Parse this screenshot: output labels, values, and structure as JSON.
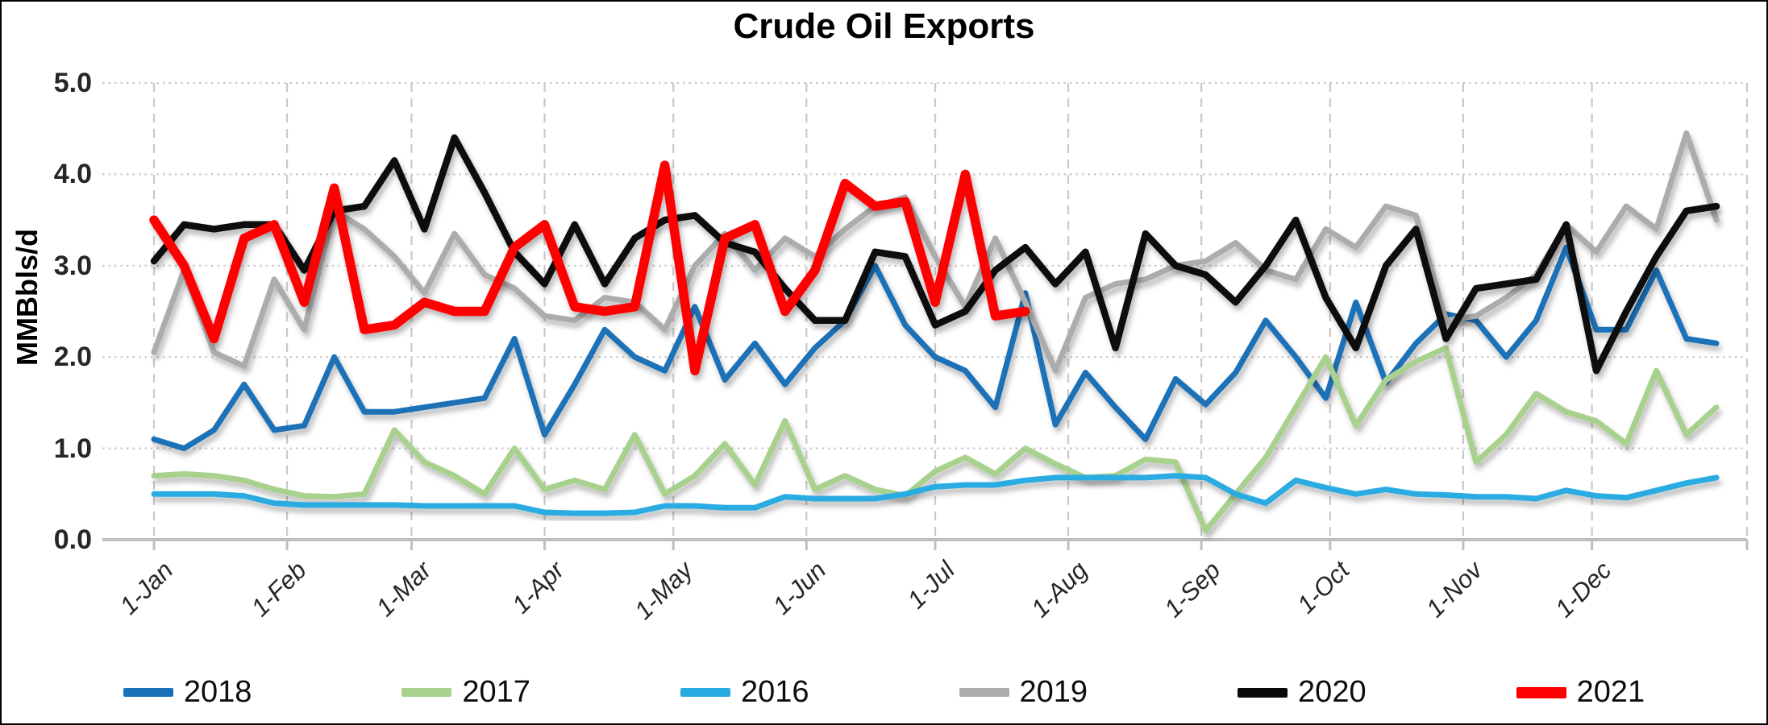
{
  "title": "Crude Oil Exports",
  "y_axis": {
    "label": "MMBbls/d",
    "tick_labels": [
      "0.0",
      "1.0",
      "2.0",
      "3.0",
      "4.0",
      "5.0"
    ],
    "min": 0,
    "max": 5
  },
  "x_axis": {
    "tick_labels": [
      "1-Jan",
      "1-Feb",
      "1-Mar",
      "1-Apr",
      "1-May",
      "1-Jun",
      "1-Jul",
      "1-Aug",
      "1-Sep",
      "1-Oct",
      "1-Nov",
      "1-Dec"
    ]
  },
  "legend": {
    "entries": [
      {
        "label": "2018",
        "color": "#1B71B7"
      },
      {
        "label": "2017",
        "color": "#A9D18E"
      },
      {
        "label": "2016",
        "color": "#29ABE2"
      },
      {
        "label": "2019",
        "color": "#ACACAC"
      },
      {
        "label": "2020",
        "color": "#0A0A0A"
      },
      {
        "label": "2021",
        "color": "#FE0000"
      }
    ]
  },
  "chart_data": {
    "type": "line",
    "title": "Crude Oil Exports",
    "ylabel": "MMBbls/d",
    "ylim": [
      0,
      5
    ],
    "grid": {
      "horizontal": "dotted",
      "vertical": "dashed"
    },
    "legend_position": "bottom",
    "x_unit": "weekly (values are approximate weekly readings, weeks 1-53 of the year)",
    "months": [
      {
        "label": "1-Jan",
        "doy": 1
      },
      {
        "label": "1-Feb",
        "doy": 32
      },
      {
        "label": "1-Mar",
        "doy": 61
      },
      {
        "label": "1-Apr",
        "doy": 92
      },
      {
        "label": "1-May",
        "doy": 122
      },
      {
        "label": "1-Jun",
        "doy": 153
      },
      {
        "label": "1-Jul",
        "doy": 183
      },
      {
        "label": "1-Aug",
        "doy": 214
      },
      {
        "label": "1-Sep",
        "doy": 245
      },
      {
        "label": "1-Oct",
        "doy": 275
      },
      {
        "label": "1-Nov",
        "doy": 306
      },
      {
        "label": "1-Dec",
        "doy": 336
      }
    ],
    "series": [
      {
        "name": "2018",
        "color": "#1B71B7",
        "values": [
          1.1,
          1.0,
          1.2,
          1.7,
          1.2,
          1.25,
          2.0,
          1.4,
          1.4,
          1.45,
          1.5,
          1.55,
          2.2,
          1.15,
          1.7,
          2.3,
          2.0,
          1.85,
          2.55,
          1.75,
          2.15,
          1.7,
          2.1,
          2.4,
          3.0,
          2.35,
          2.0,
          1.85,
          1.45,
          2.7,
          1.26,
          1.83,
          1.45,
          1.1,
          1.76,
          1.48,
          1.83,
          2.4,
          2.0,
          1.55,
          2.6,
          1.72,
          2.15,
          2.47,
          2.4,
          2.0,
          2.4,
          3.2,
          2.3,
          2.3,
          2.95,
          2.2,
          2.15
        ]
      },
      {
        "name": "2017",
        "color": "#A9D18E",
        "values": [
          0.7,
          0.72,
          0.7,
          0.65,
          0.55,
          0.48,
          0.47,
          0.5,
          1.2,
          0.85,
          0.7,
          0.5,
          1.0,
          0.55,
          0.65,
          0.55,
          1.15,
          0.5,
          0.7,
          1.05,
          0.6,
          1.3,
          0.55,
          0.7,
          0.55,
          0.48,
          0.75,
          0.9,
          0.72,
          1.0,
          0.83,
          0.68,
          0.7,
          0.88,
          0.85,
          0.1,
          0.5,
          0.9,
          1.45,
          2.0,
          1.25,
          1.75,
          1.95,
          2.1,
          0.85,
          1.15,
          1.6,
          1.4,
          1.3,
          1.05,
          1.85,
          1.15,
          1.45
        ]
      },
      {
        "name": "2016",
        "color": "#29ABE2",
        "values": [
          0.5,
          0.5,
          0.5,
          0.48,
          0.4,
          0.38,
          0.38,
          0.38,
          0.38,
          0.37,
          0.37,
          0.37,
          0.37,
          0.3,
          0.29,
          0.29,
          0.3,
          0.37,
          0.37,
          0.35,
          0.35,
          0.47,
          0.45,
          0.45,
          0.45,
          0.5,
          0.58,
          0.6,
          0.6,
          0.65,
          0.68,
          0.68,
          0.68,
          0.68,
          0.7,
          0.68,
          0.5,
          0.4,
          0.65,
          0.57,
          0.5,
          0.55,
          0.5,
          0.49,
          0.47,
          0.47,
          0.45,
          0.54,
          0.48,
          0.46,
          0.54,
          0.62,
          0.68
        ]
      },
      {
        "name": "2019",
        "color": "#ACACAC",
        "values": [
          2.05,
          2.95,
          2.05,
          1.9,
          2.85,
          2.3,
          3.6,
          3.4,
          3.1,
          2.7,
          3.35,
          2.9,
          2.75,
          2.45,
          2.4,
          2.65,
          2.6,
          2.3,
          3.0,
          3.35,
          2.95,
          3.3,
          3.1,
          3.4,
          3.65,
          3.75,
          3.1,
          2.55,
          3.3,
          2.6,
          1.85,
          2.65,
          2.8,
          2.85,
          3.0,
          3.05,
          3.25,
          2.95,
          2.85,
          3.4,
          3.2,
          3.65,
          3.55,
          2.4,
          2.45,
          2.65,
          2.9,
          3.45,
          3.15,
          3.65,
          3.4,
          4.45,
          3.5
        ]
      },
      {
        "name": "2020",
        "color": "#0A0A0A",
        "values": [
          3.05,
          3.45,
          3.4,
          3.45,
          3.45,
          2.95,
          3.6,
          3.65,
          4.15,
          3.4,
          4.4,
          3.8,
          3.15,
          2.8,
          3.45,
          2.8,
          3.3,
          3.5,
          3.55,
          3.25,
          3.15,
          2.75,
          2.4,
          2.4,
          3.15,
          3.1,
          2.35,
          2.5,
          2.95,
          3.2,
          2.8,
          3.15,
          2.1,
          3.35,
          3.0,
          2.9,
          2.6,
          3.0,
          3.5,
          2.65,
          2.1,
          3.0,
          3.4,
          2.2,
          2.75,
          2.8,
          2.85,
          3.45,
          1.85,
          2.5,
          3.1,
          3.6,
          3.65
        ]
      },
      {
        "name": "2021",
        "color": "#FE0000",
        "values": [
          3.5,
          3.0,
          2.2,
          3.3,
          3.45,
          2.6,
          3.85,
          2.3,
          2.35,
          2.6,
          2.5,
          2.5,
          3.2,
          3.45,
          2.55,
          2.5,
          2.55,
          4.1,
          1.85,
          3.3,
          3.45,
          2.5,
          2.95,
          3.9,
          3.65,
          3.7,
          2.6,
          4.0,
          2.45,
          2.5
        ]
      }
    ]
  }
}
